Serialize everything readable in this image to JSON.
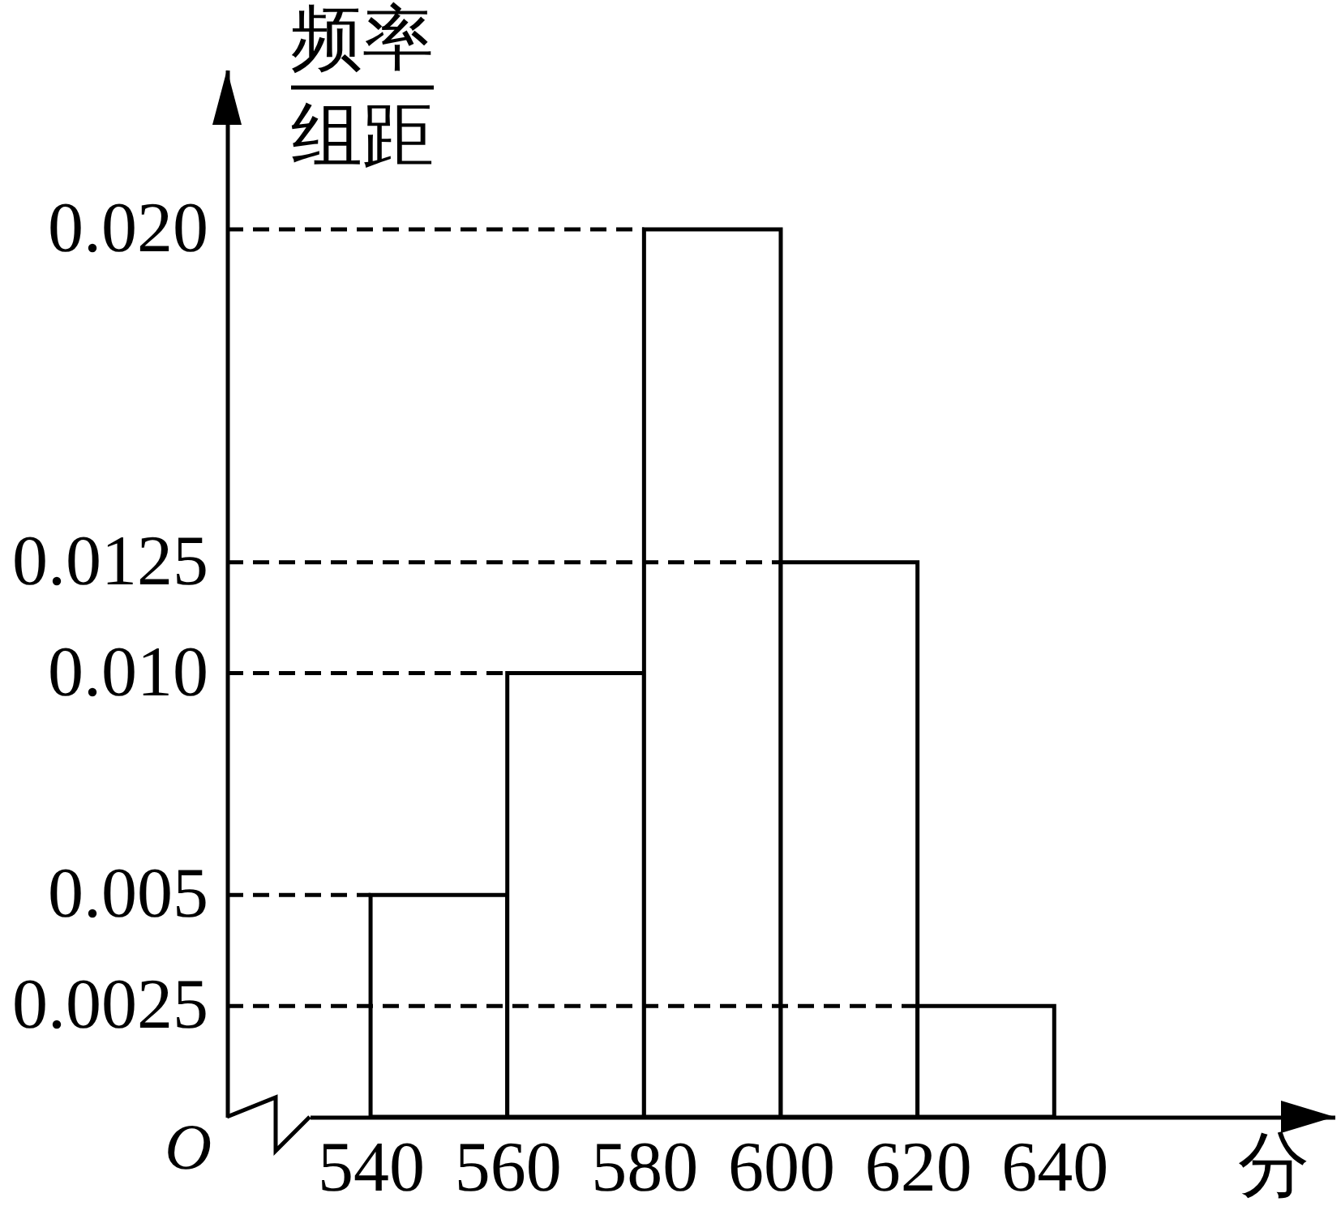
{
  "chart_data": {
    "type": "histogram",
    "xlabel": "分",
    "ylabel": "频率组距",
    "bins": [
      540,
      560,
      580,
      600,
      620,
      640
    ],
    "values": [
      0.005,
      0.01,
      0.02,
      0.0125,
      0.0025
    ],
    "color": "#ffffff",
    "xlim": [
      519,
      681
    ],
    "xticks": [
      540,
      560,
      580,
      600,
      620,
      640
    ],
    "ylim": [
      0,
      0.0236
    ],
    "yticks": [
      0.0025,
      0.005,
      {
        "value": 0.01,
        "label": "0.010"
      },
      0.0125,
      {
        "value": 0.02,
        "label": "0.020"
      }
    ],
    "ref_lines": [
      {
        "axis": "y",
        "value": 0.02,
        "line_style": "dashed",
        "color": "#000000"
      },
      {
        "axis": "y",
        "value": 0.0125,
        "line_style": "dashed",
        "color": "#000000"
      },
      {
        "axis": "y",
        "value": 0.01,
        "line_style": "dashed",
        "color": "#000000"
      },
      {
        "axis": "y",
        "value": 0.005,
        "line_style": "dashed",
        "color": "#000000"
      },
      {
        "axis": "y",
        "value": 0.0025,
        "line_style": "dashed",
        "color": "#000000"
      }
    ],
    "annotations": [
      "O"
    ]
  }
}
